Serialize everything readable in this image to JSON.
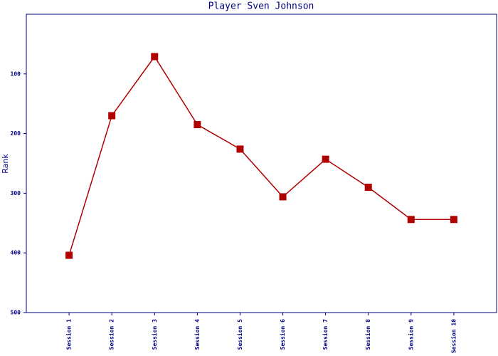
{
  "chart_data": {
    "type": "line",
    "title": "Player Sven Johnson",
    "y_label": "Rank",
    "categories": [
      "Session 1",
      "Session 2",
      "Session 3",
      "Session 4",
      "Session 5",
      "Session 6",
      "Session 7",
      "Session 8",
      "Session 9",
      "Session 10"
    ],
    "values": [
      404,
      170,
      71,
      185,
      226,
      306,
      243,
      290,
      344,
      344
    ],
    "color": "#b00000",
    "axis_color": "#000080",
    "ylim": [
      500,
      0
    ],
    "yticks": [
      100,
      200,
      300,
      400,
      500
    ],
    "grid": false
  }
}
